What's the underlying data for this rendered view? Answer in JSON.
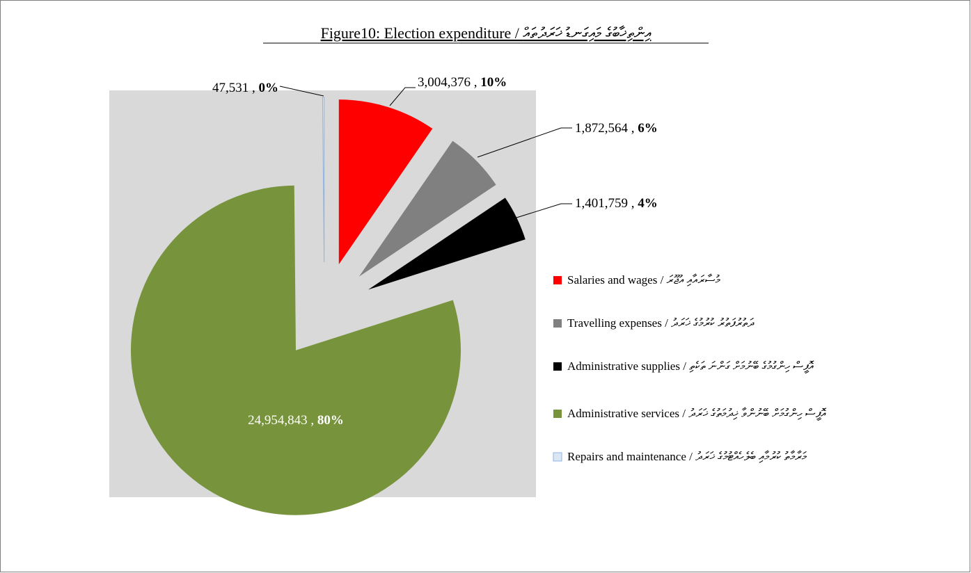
{
  "chart_data": {
    "type": "pie",
    "title": "Figure10: Election expenditure / އިންތިޚާބުގެ މައިގަނޑު ޚަރަދުތައް",
    "categories": [
      "Salaries and wages / މުސާރައާއި އުޖޫރަ",
      "Travelling expenses / ދަތުރުފަތުރު ކުރުމުގެ ޚަރަދު",
      "Administrative supplies / އޮފީސް ހިންގުމުގެ ބޭނުމަށް ގަންނަ ތަކެތި",
      "Administrative services / އޮފީސް ހިންގުމަށް ބޭނުންވާ ޚިދުމަތުގެ ޚަރަދު",
      "Repairs and maintenance / މަރާމާތު ކުރުމާއި ބެލެހެއްޓުމުގެ ޚަރަދު"
    ],
    "values": [
      3004376,
      1872564,
      1401759,
      24954843,
      47531
    ],
    "value_labels": [
      "3,004,376",
      "1,872,564",
      "1,401,759",
      "24,954,843",
      "47,531"
    ],
    "label_separator": " , ",
    "percentages": [
      10,
      6,
      4,
      80,
      0
    ],
    "percentage_labels": [
      "10%",
      "6%",
      "4%",
      "80%",
      "0%"
    ],
    "colors": [
      "#ff0000",
      "#808080",
      "#000000",
      "#77933c",
      "#dce6f2"
    ],
    "legend": "right"
  }
}
